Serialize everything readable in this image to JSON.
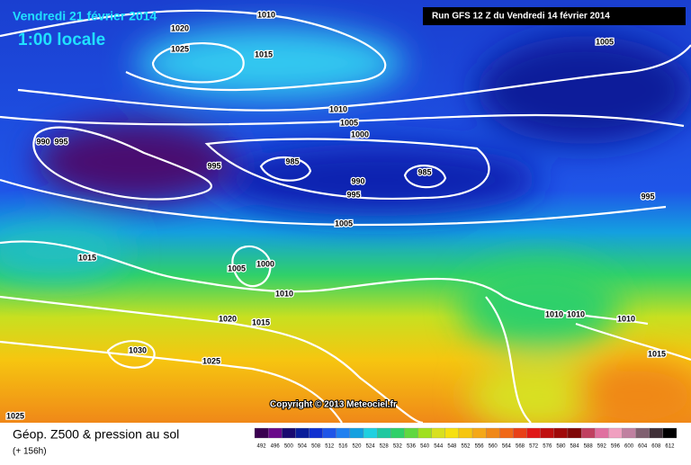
{
  "header": {
    "date": "Vendredi 21 février 2014",
    "time": "1:00 locale",
    "run": "Run GFS 12 Z du Vendredi 14 février 2014"
  },
  "isobar_labels": [
    1010,
    1020,
    1025,
    1015,
    1005,
    1010,
    1005,
    1000,
    990,
    995,
    995,
    985,
    990,
    995,
    985,
    1005,
    995,
    1015,
    1005,
    1000,
    1010,
    1020,
    1015,
    1030,
    1025,
    1025,
    1010,
    1010,
    1010,
    1015
  ],
  "copyright": "Copyright © 2013 Meteociel.fr",
  "legend": {
    "title": "Géop. Z500 & pression au sol",
    "lead_time": "(+ 156h)",
    "scale": [
      492,
      496,
      500,
      504,
      508,
      512,
      516,
      520,
      524,
      528,
      532,
      536,
      540,
      544,
      548,
      552,
      556,
      560,
      564,
      568,
      572,
      576,
      580,
      584,
      588,
      592,
      596,
      600,
      604,
      608,
      612
    ]
  }
}
